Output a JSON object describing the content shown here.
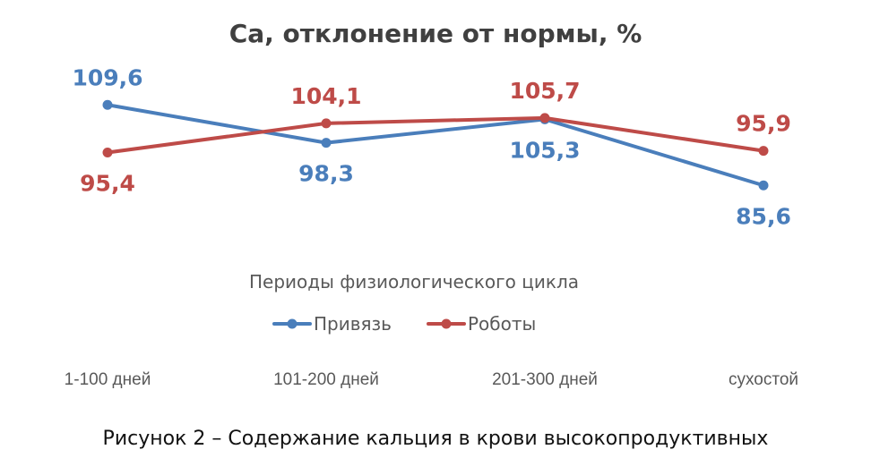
{
  "chart_data": {
    "type": "line",
    "title": "Са, отклонение от нормы, %",
    "xlabel": "Периоды физиологического цикла",
    "ylabel": "",
    "categories": [
      "1-100 дней",
      "101-200 дней",
      "201-300 дней",
      "сухостой"
    ],
    "series": [
      {
        "name": "Привязь",
        "values": [
          109.6,
          98.3,
          105.3,
          85.6
        ],
        "labels": [
          "109,6",
          "98,3",
          "105,3",
          "85,6"
        ],
        "color": "#4a7ebb"
      },
      {
        "name": "Роботы",
        "values": [
          95.4,
          104.1,
          105.7,
          95.9
        ],
        "labels": [
          "95,4",
          "104,1",
          "105,7",
          "95,9"
        ],
        "color": "#be4b48"
      }
    ],
    "ylim": [
      75,
      115
    ],
    "grid": false,
    "legend": "bottom"
  },
  "caption": "Рисунок 2 – Содержание кальция в крови высокопродуктивных"
}
